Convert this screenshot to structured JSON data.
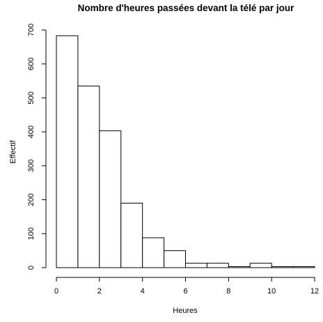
{
  "chart_data": {
    "type": "bar",
    "title": "Nombre d'heures passées devant la télé par jour",
    "xlabel": "Heures",
    "ylabel": "Effectif",
    "bin_edges": [
      0,
      1,
      2,
      3,
      4,
      5,
      6,
      7,
      8,
      9,
      10,
      11,
      12
    ],
    "values": [
      683,
      535,
      403,
      190,
      88,
      50,
      13,
      13,
      3,
      13,
      3,
      3
    ],
    "xlim": [
      0,
      12
    ],
    "ylim": [
      0,
      700
    ],
    "x_ticks": [
      "0",
      "2",
      "4",
      "6",
      "8",
      "10",
      "12"
    ],
    "y_ticks": [
      "0",
      "100",
      "200",
      "300",
      "400",
      "500",
      "600",
      "700"
    ],
    "grid": false,
    "legend": "none"
  }
}
